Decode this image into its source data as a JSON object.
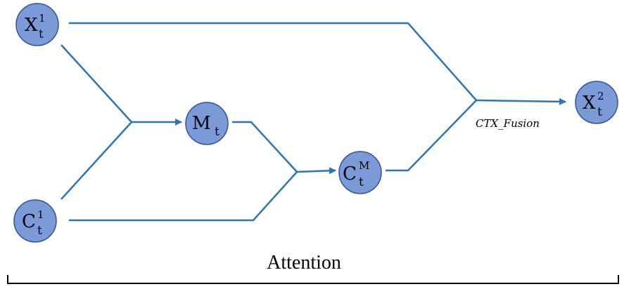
{
  "nodes": {
    "x1": {
      "base": "X",
      "sub": "t",
      "sup": "1"
    },
    "c1": {
      "base": "C",
      "sub": "t",
      "sup": "1"
    },
    "m": {
      "base": "M",
      "sub": "t",
      "sup": ""
    },
    "cm": {
      "base": "C",
      "sub": "t",
      "sup": "M"
    },
    "x2": {
      "base": "X",
      "sub": "t",
      "sup": "2"
    }
  },
  "labels": {
    "fusion": "CTX_Fusion",
    "attention": "Attention"
  },
  "colors": {
    "edge": "#2e75b6",
    "node_fill": "#7b9ad8",
    "node_stroke": "#2f5597"
  }
}
